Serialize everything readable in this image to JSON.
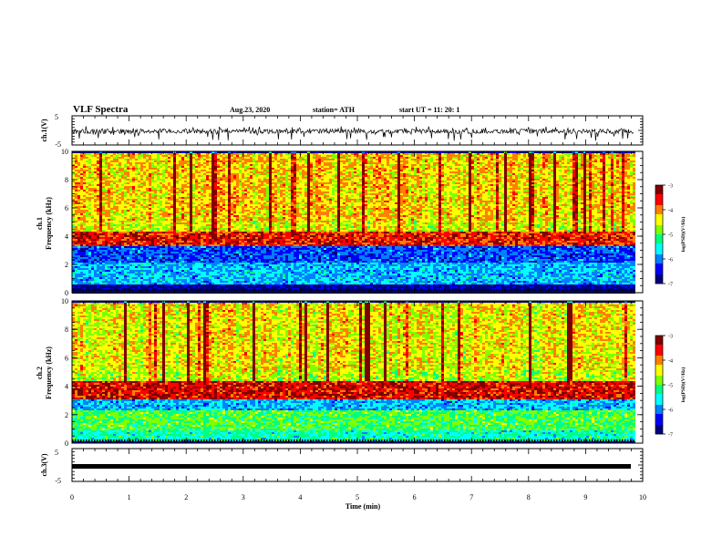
{
  "header": {
    "title": "VLF Spectra",
    "date": "Aug.23, 2020",
    "station": "station= ATH",
    "start": "start  UT =  11: 20: 1"
  },
  "colors": {
    "colormap": [
      "#00007f",
      "#0000ff",
      "#0080ff",
      "#00ffff",
      "#00ff80",
      "#80ff00",
      "#ffff00",
      "#ff8000",
      "#ff0000",
      "#7f0000"
    ],
    "waveform": "#000000"
  },
  "chart_data": [
    {
      "type": "line",
      "panel": "ch1-waveform",
      "ylabel": "ch.1(V)",
      "ylim": [
        -5,
        5
      ],
      "yticks": [
        "5",
        "-5"
      ],
      "xlim": [
        0,
        10
      ],
      "series": [
        {
          "description_values": "noisy signal centered near -0.3 V with spikes to about -3.5 and +1"
        }
      ]
    },
    {
      "type": "heatmap",
      "panel": "ch1-spectrogram",
      "ylabel": "ch.1\nFrequency (kHz)",
      "ylim": [
        0,
        10
      ],
      "yticks": [
        "0",
        "2",
        "4",
        "6",
        "8",
        "10"
      ],
      "xlim": [
        0,
        9.85
      ],
      "colorbar": {
        "label": "log(PSD)(V²/Hz)",
        "range": [
          -7,
          -3
        ],
        "ticks": [
          "-3",
          "-4",
          "-5",
          "-6",
          "-7"
        ]
      },
      "bands": [
        {
          "f_range": [
            0.2,
            0.6
          ],
          "level": -6.8
        },
        {
          "f_range": [
            0.6,
            2.2
          ],
          "level": -5.8
        },
        {
          "f_range": [
            2.2,
            3.4
          ],
          "level": -6.2
        },
        {
          "f_range": [
            3.4,
            4.4
          ],
          "level": -3.6
        },
        {
          "f_range": [
            4.4,
            5.2
          ],
          "level": -4.5
        },
        {
          "f_range": [
            5.2,
            10.0
          ],
          "level": -4.3
        }
      ]
    },
    {
      "type": "heatmap",
      "panel": "ch2-spectrogram",
      "ylabel": "ch.2\nFrequency (kHz)",
      "ylim": [
        0,
        10
      ],
      "yticks": [
        "0",
        "2",
        "4",
        "6",
        "8",
        "10"
      ],
      "xlim": [
        0,
        9.85
      ],
      "colorbar": {
        "label": "log(PSD)(V²/Hz)",
        "range": [
          -7,
          -3
        ],
        "ticks": [
          "-3",
          "-4",
          "-5",
          "-6",
          "-7"
        ]
      },
      "bands": [
        {
          "f_range": [
            0.2,
            1.0
          ],
          "level": -5.4
        },
        {
          "f_range": [
            1.0,
            2.4
          ],
          "level": -5.0
        },
        {
          "f_range": [
            2.4,
            3.2
          ],
          "level": -5.8
        },
        {
          "f_range": [
            3.2,
            4.4
          ],
          "level": -3.5
        },
        {
          "f_range": [
            4.4,
            5.2
          ],
          "level": -4.6
        },
        {
          "f_range": [
            5.2,
            10.0
          ],
          "level": -4.4
        }
      ]
    },
    {
      "type": "line",
      "panel": "ch3-waveform",
      "ylabel": "ch.3(V)",
      "ylim": [
        -5,
        5
      ],
      "yticks": [
        "5",
        "-5"
      ],
      "xlim": [
        0,
        10
      ],
      "series": [
        {
          "description_values": "thick constant line near 0 V"
        }
      ]
    }
  ],
  "xaxis": {
    "label": "Time  (min)",
    "ticks": [
      "0",
      "1",
      "2",
      "3",
      "4",
      "5",
      "6",
      "7",
      "8",
      "9",
      "10"
    ]
  }
}
